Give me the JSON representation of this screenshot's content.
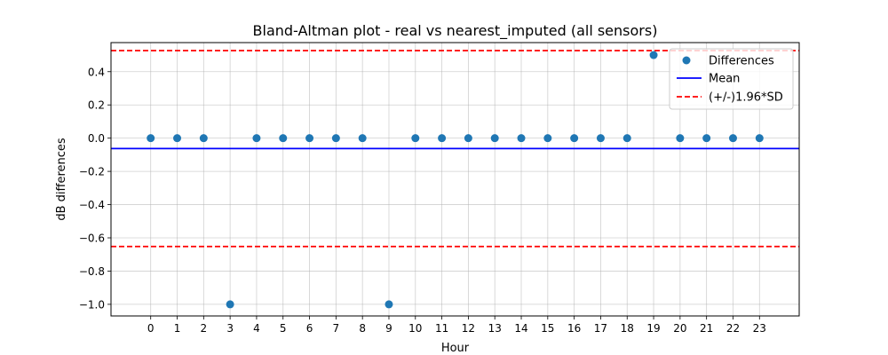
{
  "chart_data": {
    "type": "scatter",
    "title": "Bland-Altman plot - real vs nearest_imputed (all sensors)",
    "xlabel": "Hour",
    "ylabel": "dB differences",
    "xlim": [
      -1.5,
      24.5
    ],
    "ylim": [
      -1.07,
      0.575
    ],
    "xticks": [
      0,
      1,
      2,
      3,
      4,
      5,
      6,
      7,
      8,
      9,
      10,
      11,
      12,
      13,
      14,
      15,
      16,
      17,
      18,
      19,
      20,
      21,
      22,
      23
    ],
    "yticks": [
      -1.0,
      -0.8,
      -0.6,
      -0.4,
      -0.2,
      0.0,
      0.2,
      0.4
    ],
    "ytick_labels": [
      "−1.0",
      "−0.8",
      "−0.6",
      "−0.4",
      "−0.2",
      "0.0",
      "0.2",
      "0.4"
    ],
    "grid": true,
    "legend_position": "top-right",
    "series": [
      {
        "name": "Differences",
        "kind": "scatter",
        "color": "#1f77b4",
        "x": [
          0,
          1,
          2,
          3,
          4,
          5,
          6,
          7,
          8,
          9,
          10,
          11,
          12,
          13,
          14,
          15,
          16,
          17,
          18,
          19,
          20,
          21,
          22,
          23
        ],
        "y": [
          0,
          0,
          0,
          -1.0,
          0,
          0,
          0,
          0,
          0,
          -1.0,
          0,
          0,
          0,
          0,
          0,
          0,
          0,
          0,
          0,
          0.5,
          0,
          0,
          0,
          0
        ]
      },
      {
        "name": "Mean",
        "kind": "hline",
        "color": "#0000ff",
        "style": "solid",
        "y": -0.0625
      },
      {
        "name": "(+/-)1.96*SD",
        "kind": "hline",
        "color": "#ff0000",
        "style": "dashed",
        "y": [
          0.527,
          -0.652
        ]
      }
    ]
  }
}
